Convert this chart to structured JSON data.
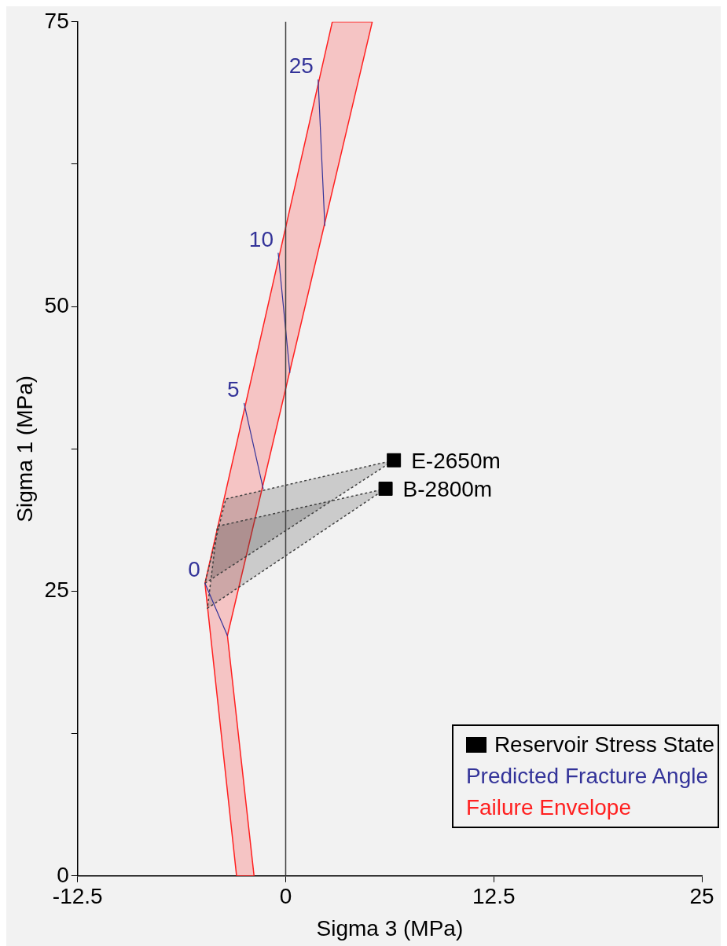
{
  "chart_data": {
    "type": "line",
    "xlabel": "Sigma 3 (MPa)",
    "ylabel": "Sigma 1 (MPa)",
    "xlim": [
      -12.5,
      25
    ],
    "xticks": [
      -12.5,
      0,
      12.5,
      25
    ],
    "ylim": [
      0,
      75
    ],
    "yticks": [
      0,
      {
        "value": 12.5,
        "label": null
      },
      25,
      {
        "value": 37.5,
        "label": null
      },
      50,
      {
        "value": 62.5,
        "label": null
      },
      75
    ],
    "grid": false,
    "legend": "bottom right",
    "ref_lines": [
      {
        "axis": "x",
        "value": 0,
        "color": "#404040"
      }
    ],
    "annotations": [
      {
        "text": "0",
        "x": -4.85,
        "y": 25.7
      },
      {
        "text": "5",
        "x": -2.5,
        "y": 41.5
      },
      {
        "text": "10",
        "x": -0.45,
        "y": 54.7
      },
      {
        "text": "25",
        "x": 1.95,
        "y": 69.9
      }
    ],
    "series": [
      {
        "name": "Failure Envelope",
        "type": "area",
        "color": "#ff2020",
        "x": [
          -2.95,
          -4.85,
          2.8,
          5.2,
          -3.5,
          -1.9,
          -2.95
        ],
        "values": [
          0,
          25.7,
          75,
          75,
          21.1,
          0,
          0
        ]
      },
      {
        "type": "area",
        "color": "#404040",
        "line_style": "dotted",
        "x": [
          6.5,
          -3.6,
          -4.85,
          6.5
        ],
        "values": [
          36.5,
          33.1,
          25.7,
          36.5
        ]
      },
      {
        "type": "area",
        "color": "#404040",
        "line_style": "dotted",
        "x": [
          6.0,
          -4.1,
          -4.7,
          6.0
        ],
        "values": [
          34.0,
          30.7,
          23.5,
          34.0
        ]
      },
      {
        "name": "Predicted Fracture Angle",
        "color": "#333399",
        "x": [
          -4.85,
          -3.5,
          -3.0,
          -2.5,
          -1.35,
          -0.9,
          -0.45,
          0.25,
          1.1,
          1.95,
          2.35
        ],
        "values": [
          25.7,
          21.1,
          null,
          41.5,
          34.0,
          null,
          54.7,
          44.2,
          null,
          69.9,
          57.1
        ]
      },
      {
        "name": "Reservoir Stress State",
        "type": "scatter",
        "marker": "square",
        "color": "#000000",
        "x": [
          6.5,
          6.0
        ],
        "values": [
          36.5,
          34.0
        ],
        "value_labels": [
          "E-2650m",
          "B-2800m"
        ]
      }
    ]
  }
}
